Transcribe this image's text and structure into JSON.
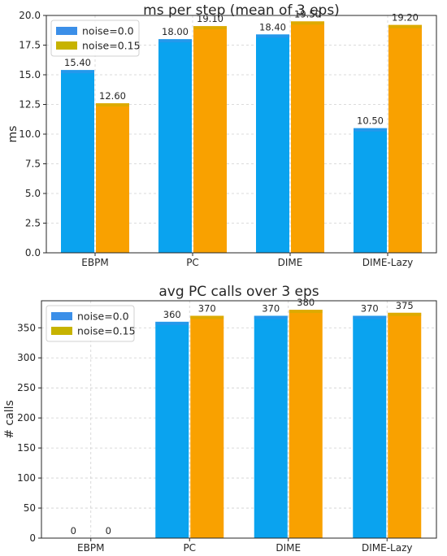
{
  "chart_data": [
    {
      "type": "bar",
      "title": "ms per step (mean of 3 eps)",
      "xlabel": "",
      "ylabel": "ms",
      "categories": [
        "EBPM",
        "PC",
        "DIME",
        "DIME-Lazy"
      ],
      "series": [
        {
          "name": "noise=0.0",
          "values": [
            15.4,
            18.0,
            18.4,
            10.5
          ],
          "labels": [
            "15.40",
            "18.00",
            "18.40",
            "10.50"
          ]
        },
        {
          "name": "noise=0.15",
          "values": [
            12.6,
            19.1,
            19.5,
            19.2
          ],
          "labels": [
            "12.60",
            "19.10",
            "19.50",
            "19.20"
          ]
        }
      ],
      "ylim": [
        0,
        20
      ],
      "yticks": [
        0.0,
        2.5,
        5.0,
        7.5,
        10.0,
        12.5,
        15.0,
        17.5,
        20.0
      ],
      "ytick_labels": [
        "0.0",
        "2.5",
        "5.0",
        "7.5",
        "10.0",
        "12.5",
        "15.0",
        "17.5",
        "20.0"
      ],
      "grid": true,
      "legend": "top-left"
    },
    {
      "type": "bar",
      "title": "avg PC calls over 3 eps",
      "xlabel": "",
      "ylabel": "# calls",
      "categories": [
        "EBPM",
        "PC",
        "DIME",
        "DIME-Lazy"
      ],
      "series": [
        {
          "name": "noise=0.0",
          "values": [
            0,
            360,
            370,
            370
          ],
          "labels": [
            "0",
            "360",
            "370",
            "370"
          ]
        },
        {
          "name": "noise=0.15",
          "values": [
            0,
            370,
            380,
            375
          ],
          "labels": [
            "0",
            "370",
            "380",
            "375"
          ]
        }
      ],
      "ylim": [
        0,
        395
      ],
      "yticks": [
        0,
        50,
        100,
        150,
        200,
        250,
        300,
        350
      ],
      "ytick_labels": [
        "0",
        "50",
        "100",
        "150",
        "200",
        "250",
        "300",
        "350"
      ],
      "grid": true,
      "legend": "top-left"
    }
  ],
  "colors": {
    "noise_0": "#0aa3ef",
    "noise_015": "#f9a100",
    "legend_noise_0": "#3b8fe8",
    "legend_noise_015": "#c7b300"
  }
}
